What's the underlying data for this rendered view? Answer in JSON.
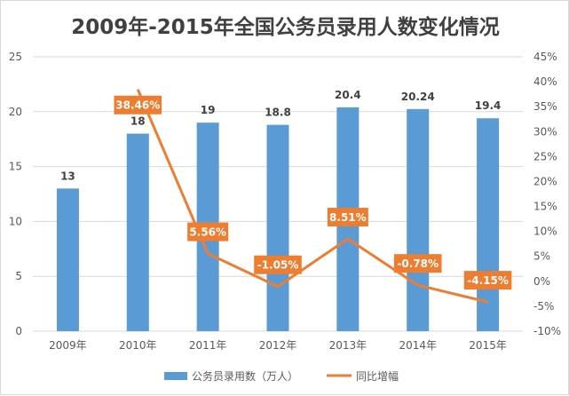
{
  "chart_data": {
    "type": "bar+line",
    "title": "2009年-2015年全国公务员录用人数变化情况",
    "categories": [
      "2009年",
      "2010年",
      "2011年",
      "2012年",
      "2013年",
      "2014年",
      "2015年"
    ],
    "series": [
      {
        "name": "公务员录用数（万人）",
        "type": "bar",
        "axis": "left",
        "color": "#5B9BD5",
        "values": [
          13,
          18,
          19,
          18.8,
          20.4,
          20.24,
          19.4
        ],
        "labels": [
          "13",
          "18",
          "19",
          "18.8",
          "20.4",
          "20.24",
          "19.4"
        ]
      },
      {
        "name": "同比增幅",
        "type": "line",
        "axis": "right",
        "color": "#ED7D31",
        "values": [
          null,
          38.46,
          5.56,
          -1.05,
          8.51,
          -0.78,
          -4.15
        ],
        "labels": [
          "",
          "38.46%",
          "5.56%",
          "-1.05%",
          "8.51%",
          "-0.78%",
          "-4.15%"
        ]
      }
    ],
    "y_left": {
      "range": [
        0,
        25
      ],
      "ticks": [
        "0",
        "5",
        "10",
        "15",
        "20",
        "25"
      ]
    },
    "y_right": {
      "range": [
        -10,
        45
      ],
      "ticks": [
        "-10%",
        "-5%",
        "0%",
        "5%",
        "10%",
        "15%",
        "20%",
        "25%",
        "30%",
        "35%",
        "40%",
        "45%"
      ]
    },
    "grid": true,
    "legend": "bottom"
  }
}
